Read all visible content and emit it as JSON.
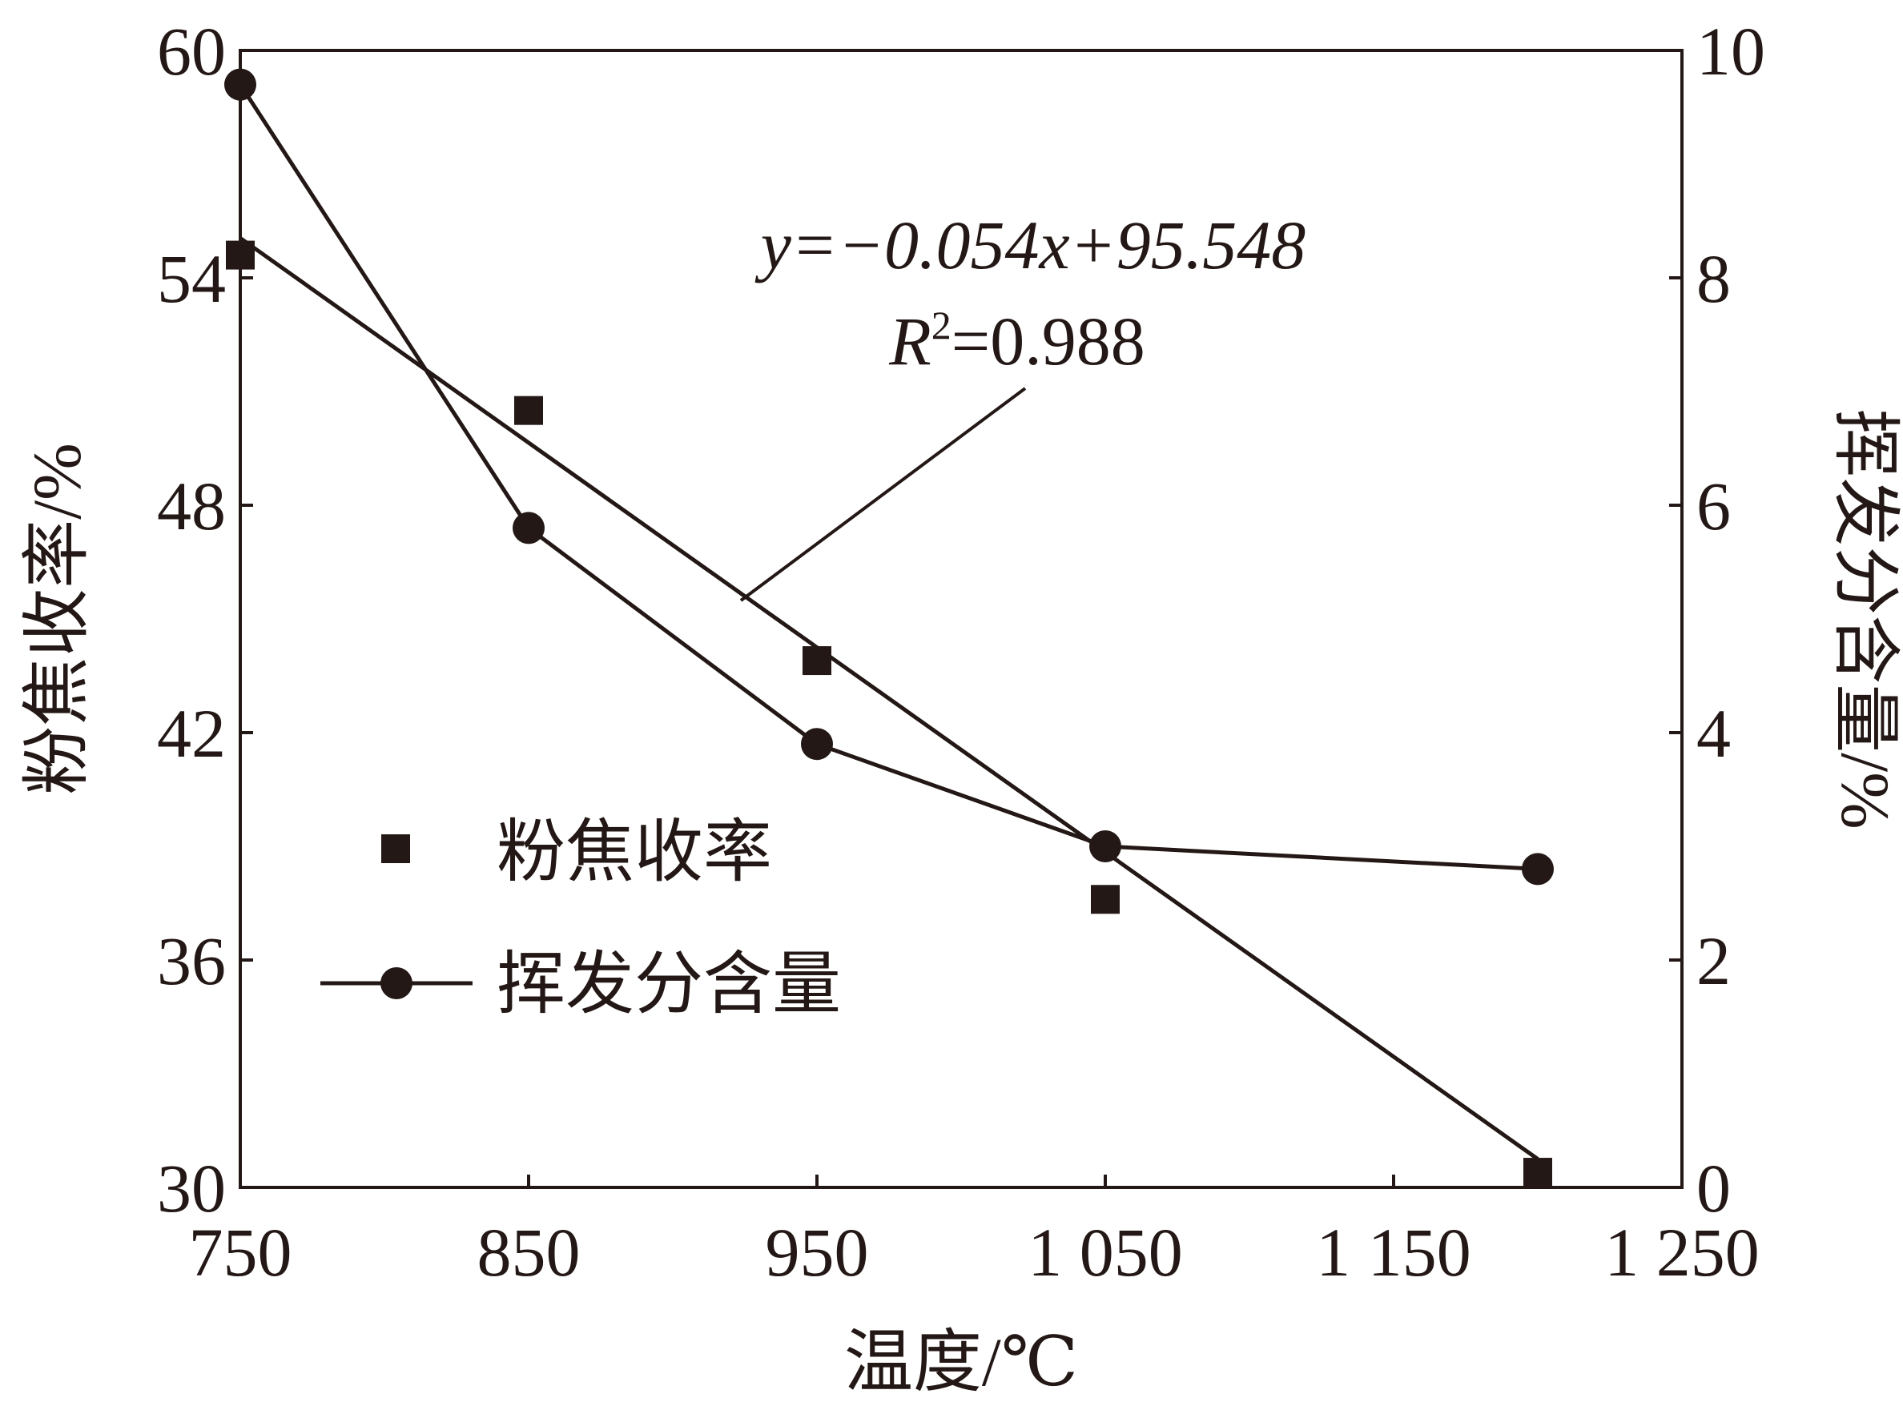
{
  "chart_data": {
    "type": "line",
    "xlabel": "温度/℃",
    "ylabel_left": "粉焦收率/%",
    "ylabel_right": "挥发分含量/%",
    "xlim": [
      750,
      1250
    ],
    "ylim_left": [
      30,
      60
    ],
    "ylim_right": [
      0,
      10
    ],
    "xticks": [
      750,
      850,
      950,
      1050,
      1150,
      1250
    ],
    "xtick_labels": [
      "750",
      "850",
      "950",
      "1 050",
      "1 150",
      "1 250"
    ],
    "yticks_left": [
      30,
      36,
      42,
      48,
      54,
      60
    ],
    "ytick_labels_left": [
      "30",
      "36",
      "42",
      "48",
      "54",
      "60"
    ],
    "yticks_right": [
      0,
      2,
      4,
      6,
      8,
      10
    ],
    "ytick_labels_right": [
      "0",
      "2",
      "4",
      "6",
      "8",
      "10"
    ],
    "grid": false,
    "legend_position": "lower-left",
    "series": [
      {
        "name": "粉焦收率",
        "axis": "left",
        "style": "scatter",
        "marker": "square",
        "x": [
          750,
          850,
          950,
          1050,
          1200
        ],
        "y": [
          54.6,
          50.5,
          43.9,
          37.6,
          30.4
        ]
      },
      {
        "name": "挥发分含量",
        "axis": "right",
        "style": "line",
        "marker": "circle",
        "x": [
          750,
          850,
          950,
          1050,
          1200
        ],
        "y": [
          9.7,
          5.8,
          3.9,
          3.0,
          2.8
        ]
      }
    ],
    "fit_line": {
      "axis": "left",
      "slope": -0.054,
      "intercept": 95.548,
      "x_range": [
        750,
        1200
      ]
    },
    "annotation": {
      "equation": "y=−0.054x+95.548",
      "r2_label": "R",
      "r2_sup": "2",
      "r2_value": "=0.988"
    },
    "colors": {
      "ink": "#231815"
    }
  }
}
